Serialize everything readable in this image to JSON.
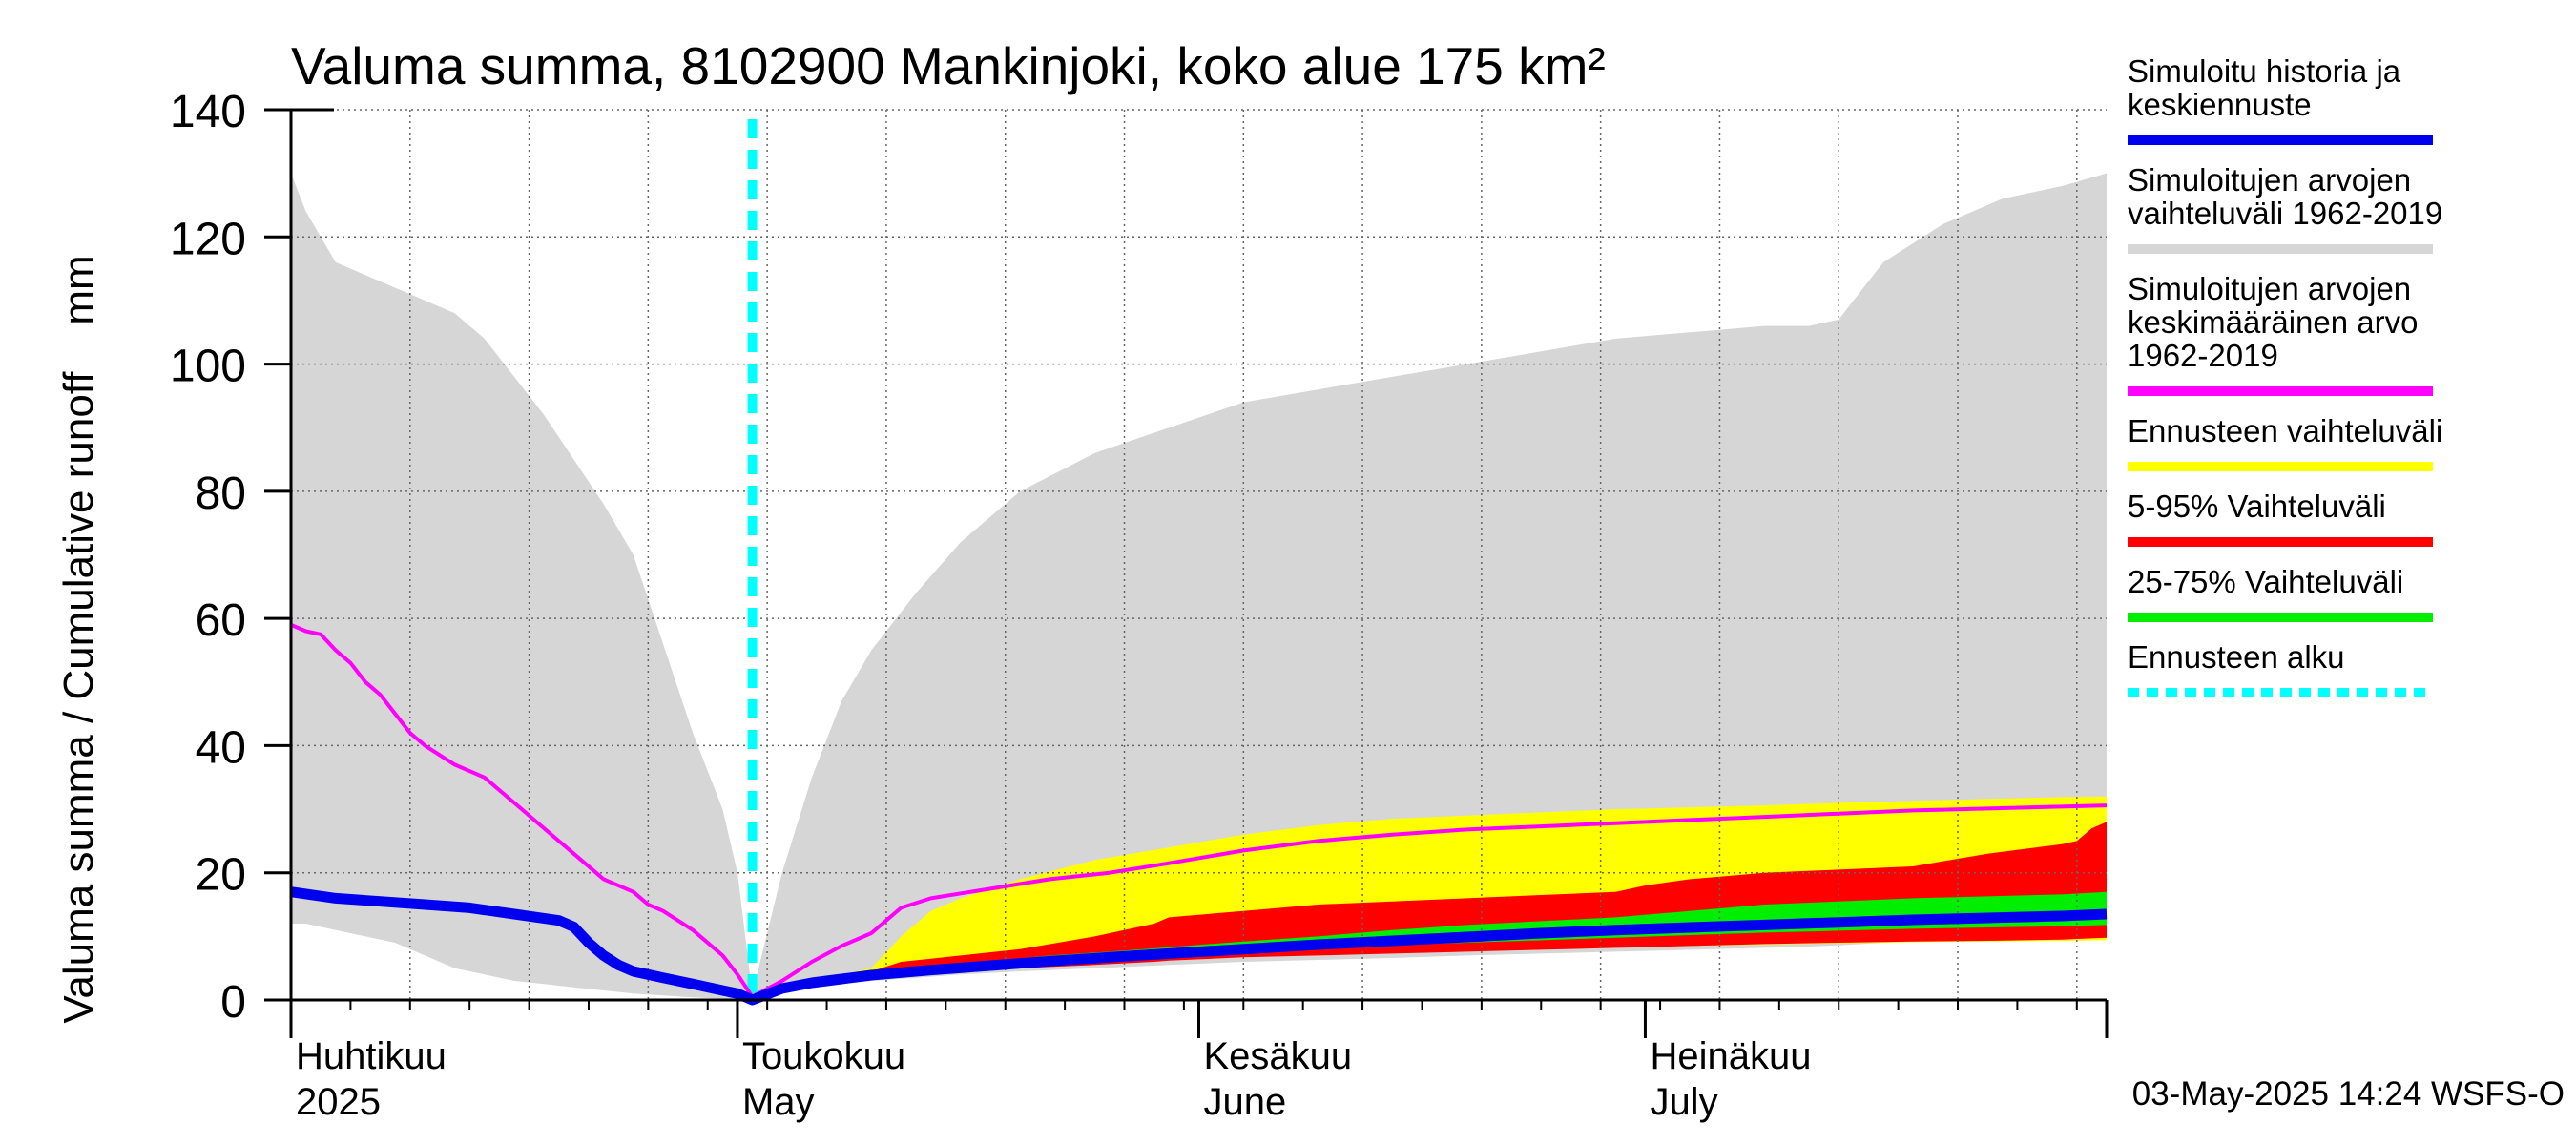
{
  "chart_data": {
    "type": "area",
    "title": "Valuma summa, 8102900 Mankinjoki, koko alue 175 km²",
    "ylabel": "Valuma summa / Cumulative runoff    mm",
    "ylim": [
      0,
      140
    ],
    "yticks": [
      0,
      20,
      40,
      60,
      80,
      100,
      120,
      140
    ],
    "x_unit": "day of year 2025",
    "xlim": [
      91,
      213
    ],
    "month_labels": [
      {
        "line1": "Huhtikuu",
        "line2": "2025",
        "day": 91
      },
      {
        "line1": "Toukokuu",
        "line2": "May",
        "day": 121
      },
      {
        "line1": "Kesäkuu",
        "line2": "June",
        "day": 152
      },
      {
        "line1": "Heinäkuu",
        "line2": "July",
        "day": 182
      }
    ],
    "month_boundaries": [
      91,
      121,
      152,
      182,
      213
    ],
    "grid": true,
    "forecast_start_day": 122,
    "series": [
      {
        "name": "Simuloitujen arvojen vaihteluväli 1962-2019",
        "kind": "band",
        "color": "#d6d6d6",
        "x": [
          91,
          92,
          94,
          96,
          98,
          100,
          102,
          104,
          106,
          108,
          110,
          112,
          114,
          116,
          118,
          120,
          121,
          122,
          124,
          126,
          128,
          130,
          133,
          136,
          140,
          145,
          150,
          155,
          160,
          165,
          170,
          175,
          180,
          185,
          190,
          193,
          195,
          198,
          202,
          206,
          210,
          213
        ],
        "upper": [
          130,
          124,
          116,
          114,
          112,
          110,
          108,
          104,
          98,
          92,
          85,
          78,
          70,
          56,
          42,
          30,
          20,
          1,
          20,
          35,
          47,
          55,
          64,
          72,
          80,
          86,
          90,
          94,
          96,
          98,
          100,
          102,
          104,
          105,
          106,
          106,
          107,
          116,
          122,
          126,
          128,
          130
        ],
        "lower": [
          12,
          12,
          11,
          10,
          9,
          7,
          5,
          4,
          3,
          2.5,
          2,
          1.5,
          1,
          0.7,
          0.4,
          0.2,
          0.1,
          0,
          1,
          2,
          2.5,
          3,
          3.5,
          4,
          4.5,
          5,
          5.5,
          6,
          6.3,
          6.6,
          7,
          7.3,
          7.6,
          7.9,
          8.2,
          8.4,
          8.6,
          9,
          9.3,
          9.6,
          9.8,
          10
        ]
      },
      {
        "name": "Ennusteen vaihteluväli",
        "kind": "band",
        "color": "#ffff00",
        "x": [
          122,
          124,
          126,
          128,
          130,
          132,
          134,
          136,
          140,
          145,
          150,
          155,
          160,
          165,
          170,
          175,
          180,
          185,
          190,
          195,
          200,
          205,
          210,
          213
        ],
        "upper": [
          0,
          2,
          3,
          4,
          5,
          10,
          14,
          16,
          19,
          22,
          24,
          26,
          27.5,
          28.5,
          29,
          29.5,
          30,
          30.3,
          30.6,
          31,
          31.3,
          31.6,
          31.9,
          32
        ],
        "lower": [
          0,
          1.5,
          2.5,
          3,
          3.5,
          4,
          4.5,
          5,
          5.5,
          6,
          6.5,
          7,
          7.3,
          7.6,
          7.9,
          8.1,
          8.3,
          8.5,
          8.7,
          8.9,
          9.1,
          9.2,
          9.3,
          9.4
        ]
      },
      {
        "name": "5-95% Vaihteluväli",
        "kind": "band",
        "color": "#ff0000",
        "x": [
          122,
          124,
          126,
          128,
          130,
          132,
          134,
          136,
          140,
          145,
          149,
          150,
          155,
          160,
          165,
          170,
          175,
          180,
          182,
          185,
          190,
          195,
          200,
          205,
          210,
          211,
          212,
          213
        ],
        "upper": [
          0,
          2,
          3,
          3.5,
          4.5,
          6,
          6.5,
          7,
          8,
          10,
          12,
          13,
          14,
          15,
          15.5,
          16,
          16.5,
          17,
          18,
          19,
          20,
          20.5,
          21,
          23,
          24.5,
          25,
          27,
          28
        ],
        "lower": [
          0,
          1.5,
          2.5,
          3,
          3.5,
          4,
          4.3,
          4.6,
          5,
          5.5,
          6,
          6.2,
          6.7,
          7,
          7.3,
          7.6,
          7.9,
          8.2,
          8.3,
          8.5,
          8.8,
          9,
          9.2,
          9.3,
          9.5,
          9.6,
          9.7,
          9.8
        ]
      },
      {
        "name": "25-75% Vaihteluväli",
        "kind": "band",
        "color": "#00ee00",
        "x": [
          122,
          124,
          126,
          128,
          130,
          134,
          138,
          142,
          146,
          150,
          155,
          160,
          165,
          170,
          175,
          180,
          185,
          190,
          195,
          200,
          205,
          210,
          213
        ],
        "upper": [
          0,
          2,
          3,
          3.6,
          4.3,
          5.3,
          6.1,
          7,
          7.6,
          8.3,
          9.2,
          10,
          11,
          11.8,
          12.4,
          13,
          14,
          15,
          15.5,
          16,
          16.3,
          16.6,
          17
        ],
        "lower": [
          0,
          1.8,
          2.7,
          3.3,
          3.9,
          4.7,
          5.3,
          6,
          6.5,
          7,
          7.6,
          8.1,
          8.6,
          9,
          9.4,
          9.8,
          10.2,
          10.6,
          10.9,
          11.2,
          11.4,
          11.6,
          11.8
        ]
      },
      {
        "name": "Simuloitujen arvojen keskimääräinen arvo 1962-2019",
        "kind": "line",
        "color": "#ff00ff",
        "x": [
          91,
          92,
          93,
          94,
          95,
          96,
          97,
          98,
          99,
          100,
          102,
          104,
          105,
          106,
          108,
          110,
          112,
          114,
          115,
          116,
          118,
          120,
          121,
          122,
          124,
          126,
          128,
          130,
          132,
          134,
          138,
          142,
          146,
          150,
          155,
          160,
          165,
          170,
          175,
          180,
          185,
          190,
          195,
          200,
          205,
          210,
          213
        ],
        "values": [
          59,
          58,
          57.5,
          55,
          53,
          50,
          48,
          45,
          42,
          40,
          37,
          35,
          33,
          31,
          27,
          23,
          19,
          17,
          15,
          14,
          11,
          7,
          4,
          0.5,
          3,
          6,
          8.5,
          10.5,
          14.5,
          16,
          17.5,
          19,
          20,
          21.5,
          23.5,
          25,
          26,
          26.8,
          27.3,
          27.8,
          28.3,
          28.8,
          29.3,
          29.8,
          30.1,
          30.4,
          30.6
        ]
      },
      {
        "name": "Simuloitu historia ja keskiennuste",
        "kind": "line",
        "color": "#0000ee",
        "x": [
          91,
          94,
          97,
          100,
          103,
          106,
          109,
          110,
          111,
          112,
          113,
          114,
          116,
          118,
          120,
          121,
          122,
          124,
          126,
          128,
          130,
          134,
          138,
          142,
          146,
          150,
          155,
          160,
          165,
          170,
          175,
          180,
          185,
          190,
          195,
          200,
          205,
          210,
          213
        ],
        "values": [
          17,
          16,
          15.5,
          15,
          14.5,
          13.5,
          12.5,
          11.5,
          9,
          7,
          5.5,
          4.5,
          3.5,
          2.5,
          1.5,
          1,
          0,
          1.8,
          2.7,
          3.3,
          3.9,
          4.7,
          5.4,
          6.1,
          6.7,
          7.3,
          8,
          8.7,
          9.3,
          9.9,
          10.5,
          11,
          11.4,
          11.8,
          12.2,
          12.6,
          12.9,
          13.2,
          13.5
        ]
      }
    ],
    "legend_position": "right",
    "legend": [
      {
        "lines": [
          "Simuloitu historia ja",
          "keskiennuste"
        ],
        "color": "#0000ee",
        "style": "solid"
      },
      {
        "lines": [
          "Simuloitujen arvojen",
          "vaihteluväli 1962-2019"
        ],
        "color": "#d6d6d6",
        "style": "solid"
      },
      {
        "lines": [
          "Simuloitujen arvojen",
          "keskimääräinen arvo",
          "   1962-2019"
        ],
        "color": "#ff00ff",
        "style": "solid"
      },
      {
        "lines": [
          "Ennusteen vaihteluväli"
        ],
        "color": "#ffff00",
        "style": "solid"
      },
      {
        "lines": [
          "5-95% Vaihteluväli"
        ],
        "color": "#ff0000",
        "style": "solid"
      },
      {
        "lines": [
          "25-75% Vaihteluväli"
        ],
        "color": "#00ee00",
        "style": "solid"
      },
      {
        "lines": [
          "Ennusteen alku"
        ],
        "color": "#00ffff",
        "style": "dashed"
      }
    ],
    "footer": "03-May-2025 14:24 WSFS-O"
  }
}
